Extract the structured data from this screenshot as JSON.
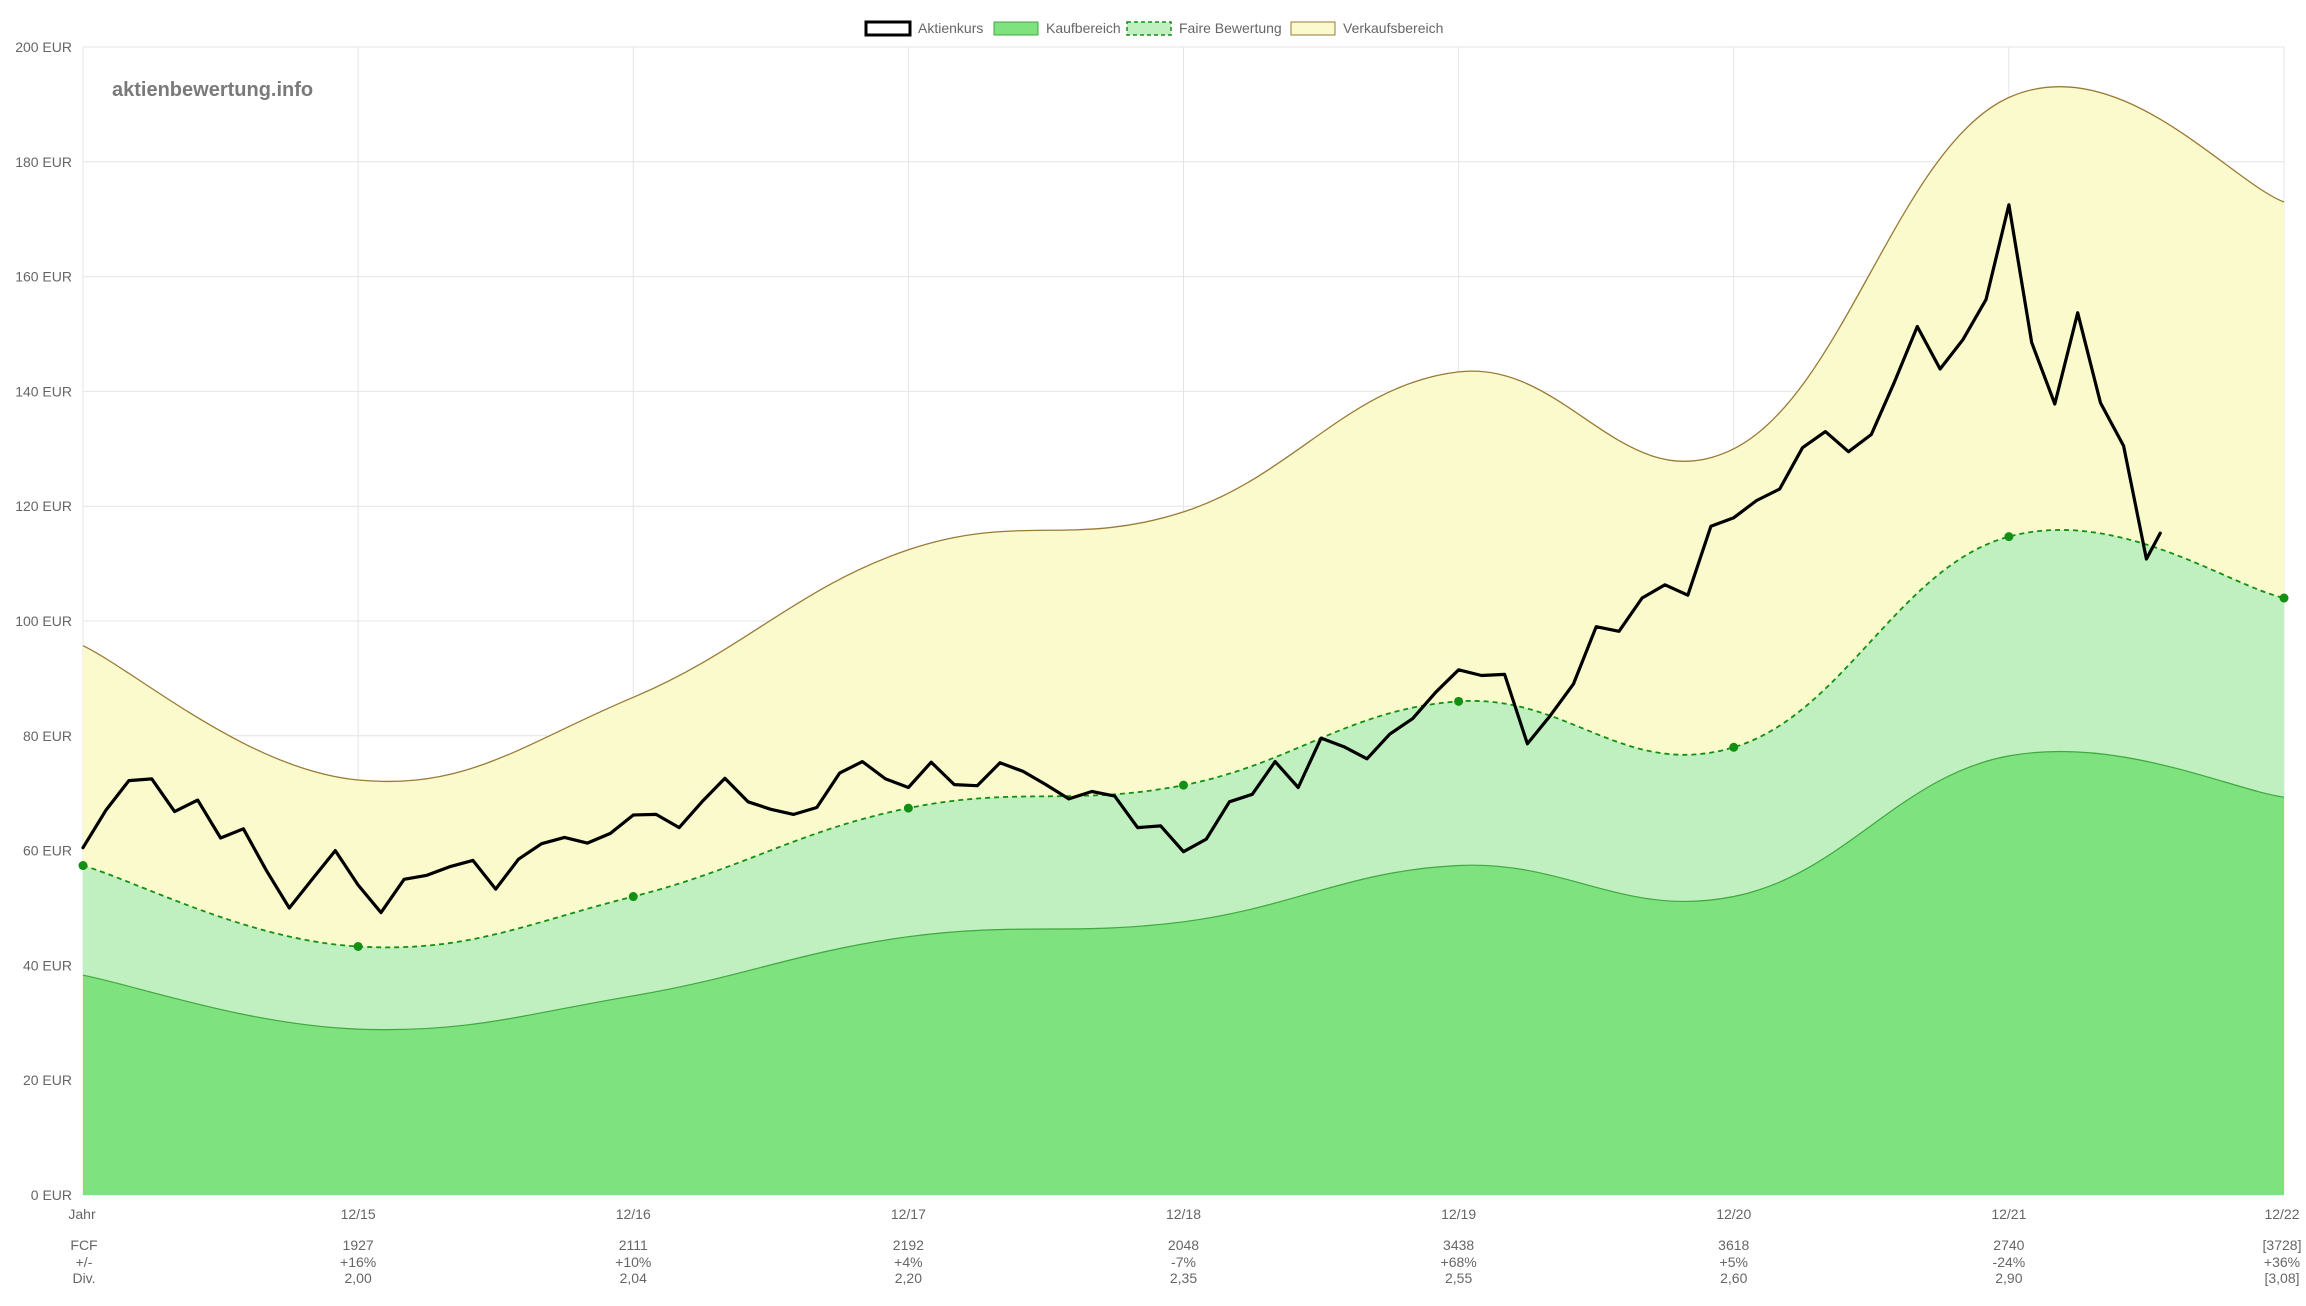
{
  "chart_data": {
    "type": "area",
    "title": "",
    "watermark": "aktienbewertung.info",
    "ylim": [
      0,
      200
    ],
    "y_ticks": [
      0,
      20,
      40,
      60,
      80,
      100,
      120,
      140,
      160,
      180,
      200
    ],
    "y_unit": "EUR",
    "categories": [
      "Jahr",
      "12/15",
      "12/16",
      "12/17",
      "12/18",
      "12/19",
      "12/20",
      "12/21",
      "12/22"
    ],
    "grid": true,
    "legend_position": "top-center",
    "legend": [
      {
        "name": "Aktienkurs",
        "color": "#000000",
        "style": "outline"
      },
      {
        "name": "Kaufbereich",
        "color": "#7ee27e",
        "style": "fill"
      },
      {
        "name": "Faire Bewertung",
        "color": "#c0f0c0",
        "style": "dashed"
      },
      {
        "name": "Verkaufsbereich",
        "color": "#fafacc",
        "style": "fill"
      }
    ],
    "series": [
      {
        "name": "Verkaufsbereich",
        "color": "#fafacc",
        "line": "#9a7a35",
        "x": [
          0,
          1,
          2,
          3,
          4,
          5,
          6,
          7,
          8
        ],
        "values": [
          95.7,
          72.3,
          86.7,
          112.4,
          119.0,
          143.4,
          130.0,
          191.2,
          173.0
        ]
      },
      {
        "name": "Faire Bewertung",
        "color": "#c0f0c0",
        "line": "#138f13",
        "x": [
          0,
          1,
          2,
          3,
          4,
          5,
          6,
          7,
          8
        ],
        "values": [
          57.4,
          43.3,
          52.0,
          67.4,
          71.4,
          86.0,
          78.0,
          114.7,
          104.0
        ]
      },
      {
        "name": "Kaufbereich",
        "color": "#7ee27e",
        "line": "#3fa83f",
        "x": [
          0,
          1,
          2,
          3,
          4,
          5,
          6,
          7,
          8
        ],
        "values": [
          38.3,
          28.9,
          34.7,
          45.0,
          47.6,
          57.4,
          52.0,
          76.5,
          69.3
        ]
      },
      {
        "name": "Aktienkurs",
        "color": "#000000",
        "x": [
          0.0,
          0.083,
          0.167,
          0.25,
          0.333,
          0.417,
          0.5,
          0.583,
          0.667,
          0.75,
          0.833,
          0.917,
          1.0,
          1.083,
          1.167,
          1.25,
          1.333,
          1.417,
          1.5,
          1.583,
          1.667,
          1.75,
          1.833,
          1.917,
          2.0,
          2.083,
          2.167,
          2.25,
          2.333,
          2.417,
          2.5,
          2.583,
          2.667,
          2.75,
          2.833,
          2.917,
          3.0,
          3.083,
          3.167,
          3.25,
          3.333,
          3.417,
          3.5,
          3.583,
          3.667,
          3.75,
          3.833,
          3.917,
          4.0,
          4.083,
          4.167,
          4.25,
          4.333,
          4.417,
          4.5,
          4.583,
          4.667,
          4.75,
          4.833,
          4.917,
          5.0,
          5.083,
          5.167,
          5.25,
          5.333,
          5.417,
          5.5,
          5.583,
          5.667,
          5.75,
          5.833,
          5.917,
          6.0,
          6.083,
          6.167,
          6.25,
          6.333,
          6.417,
          6.5,
          6.583,
          6.667,
          6.75,
          6.833,
          6.917,
          7.0,
          7.083,
          7.167,
          7.25,
          7.333,
          7.417,
          7.5,
          7.55
        ],
        "values": [
          60.5,
          67.0,
          72.2,
          72.5,
          66.8,
          68.8,
          62.2,
          63.8,
          56.5,
          50.0,
          55.0,
          60.0,
          54.0,
          49.2,
          55.0,
          55.7,
          57.2,
          58.3,
          53.3,
          58.5,
          61.2,
          62.3,
          61.3,
          63.0,
          66.2,
          66.3,
          64.0,
          68.5,
          72.6,
          68.5,
          67.2,
          66.3,
          67.5,
          73.5,
          75.5,
          72.5,
          71.0,
          75.4,
          71.5,
          71.3,
          75.3,
          73.8,
          71.5,
          69.0,
          70.3,
          69.5,
          64.0,
          64.3,
          59.8,
          62.0,
          68.5,
          69.8,
          75.5,
          71.0,
          79.6,
          78.1,
          76.0,
          80.3,
          83.0,
          87.6,
          91.5,
          90.5,
          90.7,
          78.6,
          83.5,
          89.0,
          99.0,
          98.2,
          104.0,
          106.3,
          104.5,
          116.5,
          118.0,
          121.0,
          123.0,
          130.2,
          133.0,
          129.5,
          132.5,
          141.5,
          151.3,
          143.9,
          149.0,
          156.0,
          172.5,
          148.5,
          137.8,
          153.7,
          138.0,
          130.5,
          110.8,
          115.3
        ]
      }
    ],
    "table": {
      "rows": [
        {
          "label": "FCF",
          "values": [
            "1927",
            "2111",
            "2192",
            "2048",
            "3438",
            "3618",
            "2740",
            "[3728]"
          ]
        },
        {
          "label": "+/-",
          "values": [
            "+16%",
            "+10%",
            "+4%",
            "-7%",
            "+68%",
            "+5%",
            "-24%",
            "+36%"
          ]
        },
        {
          "label": "Div.",
          "values": [
            "2,00",
            "2,04",
            "2,20",
            "2,35",
            "2,55",
            "2,60",
            "2,90",
            "[3,08]"
          ]
        }
      ]
    }
  }
}
